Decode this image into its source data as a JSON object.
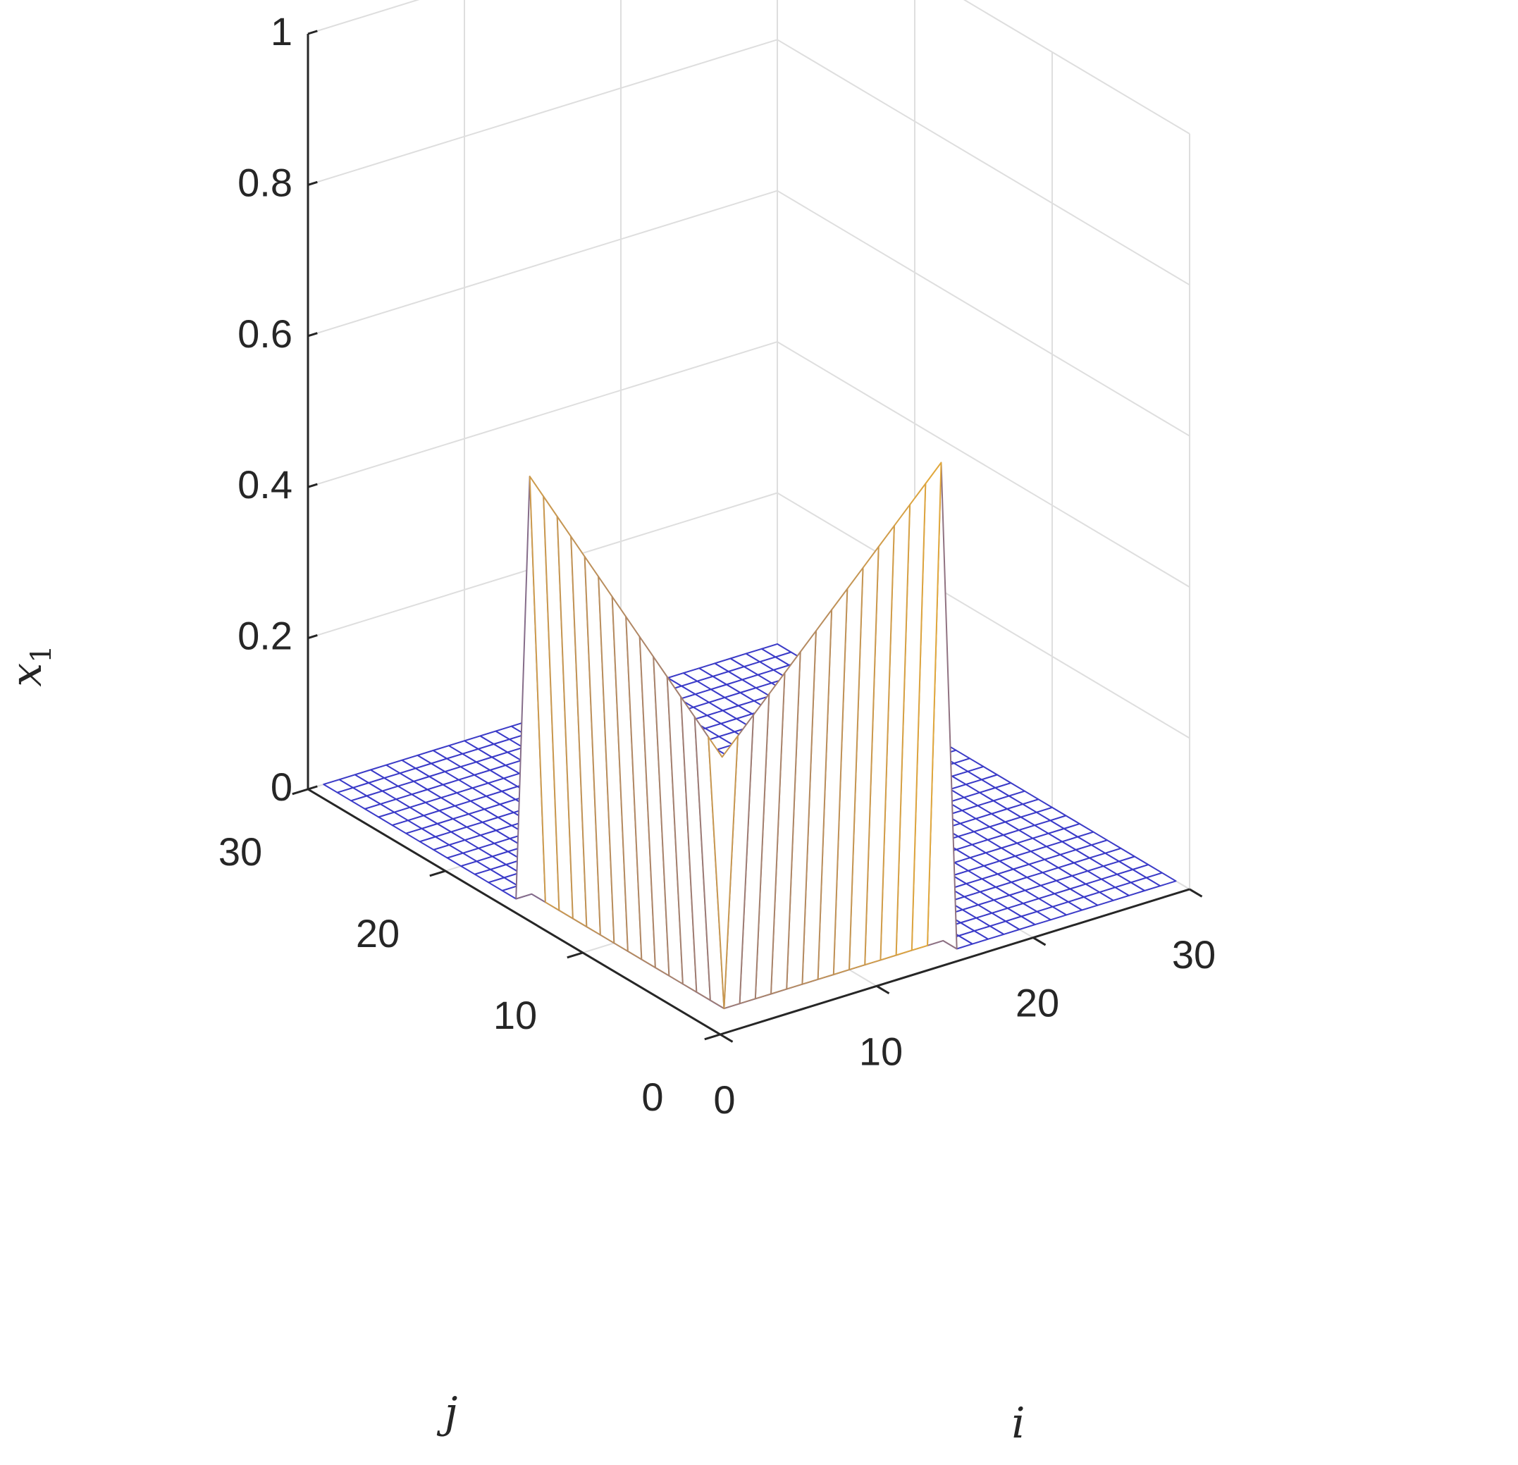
{
  "chart_data": {
    "type": "surface3d",
    "style": "mesh",
    "title": "",
    "xlabel": "i",
    "ylabel": "j",
    "zlabel": "x",
    "zlabel_subscript": "1",
    "xlim": [
      0,
      30
    ],
    "ylim": [
      0,
      30
    ],
    "zlim": [
      0,
      1
    ],
    "xticks": [
      0,
      10,
      20,
      30
    ],
    "yticks": [
      0,
      10,
      20,
      30
    ],
    "zticks": [
      0,
      0.2,
      0.4,
      0.6,
      0.8,
      1
    ],
    "xtick_labels": [
      "0",
      "10",
      "20",
      "30"
    ],
    "ytick_labels": [
      "0",
      "10",
      "20",
      "30"
    ],
    "ztick_labels": [
      "0",
      "0.2",
      "0.4",
      "0.6",
      "0.8",
      "1"
    ],
    "grid": true,
    "grid_size": 30,
    "base_value": 0,
    "nonzero_region": {
      "row_j1": {
        "j": 1,
        "i_from": 1,
        "i_to": 15,
        "value_at_i1": 0.35,
        "value_at_i15": 0.65
      },
      "column_i1": {
        "i": 1,
        "j_from": 1,
        "j_to": 15,
        "value_at_j1": 0.35,
        "value_at_j15": 0.57
      }
    },
    "colormap": [
      "#3b3bc8",
      "#f5b52b",
      "#ffff29"
    ]
  }
}
